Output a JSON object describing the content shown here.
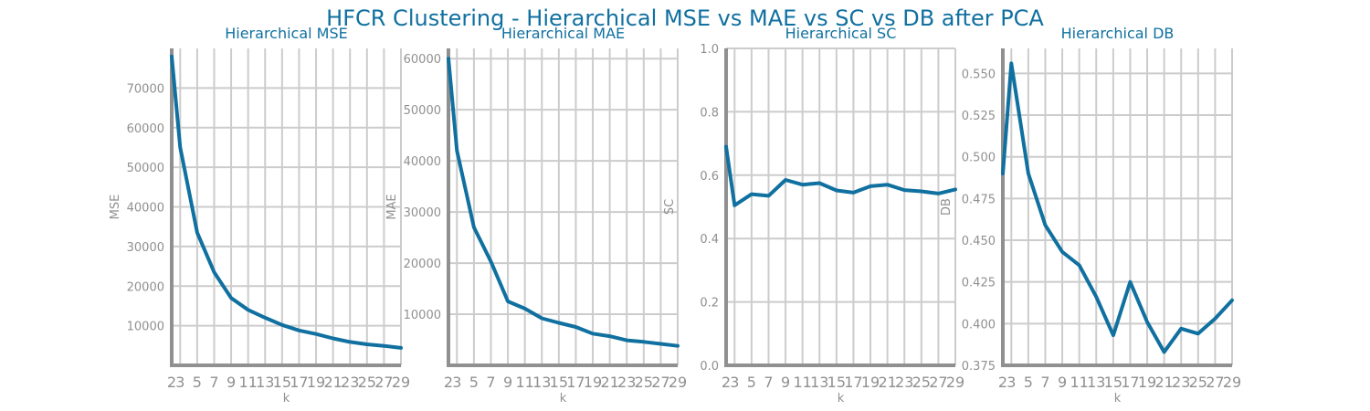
{
  "figure": {
    "title": "HFCR Clustering - Hierarchical MSE vs MAE vs SC vs DB after PCA"
  },
  "colors": {
    "series": "#1070a0",
    "title": "#1070a0",
    "grid": "#cccccc",
    "spine": "#909090",
    "text": "#909090"
  },
  "chart_data": [
    {
      "type": "line",
      "title": "Hierarchical MSE",
      "xlabel": "k",
      "ylabel": "MSE",
      "x": [
        2,
        3,
        5,
        7,
        9,
        11,
        13,
        15,
        17,
        19,
        21,
        23,
        25,
        27,
        29
      ],
      "values": [
        78000,
        55000,
        33500,
        23500,
        17000,
        14000,
        12000,
        10200,
        8800,
        7900,
        6800,
        5900,
        5300,
        4900,
        4400
      ],
      "xticks": [
        2,
        3,
        5,
        7,
        9,
        11,
        13,
        15,
        17,
        19,
        21,
        23,
        25,
        27,
        29
      ],
      "yticks": [
        10000,
        20000,
        30000,
        40000,
        50000,
        60000,
        70000
      ],
      "xlim": [
        2,
        29
      ],
      "ylim": [
        0,
        80000
      ],
      "grid": true
    },
    {
      "type": "line",
      "title": "Hierarchical MAE",
      "xlabel": "k",
      "ylabel": "MAE",
      "x": [
        2,
        3,
        5,
        7,
        9,
        11,
        13,
        15,
        17,
        19,
        21,
        23,
        25,
        27,
        29
      ],
      "values": [
        60000,
        42000,
        27000,
        20300,
        12500,
        11100,
        9200,
        8300,
        7500,
        6200,
        5700,
        4900,
        4600,
        4200,
        3800
      ],
      "xticks": [
        2,
        3,
        5,
        7,
        9,
        11,
        13,
        15,
        17,
        19,
        21,
        23,
        25,
        27,
        29
      ],
      "yticks": [
        10000,
        20000,
        30000,
        40000,
        50000,
        60000
      ],
      "xlim": [
        2,
        29
      ],
      "ylim": [
        0,
        62000
      ],
      "grid": true
    },
    {
      "type": "line",
      "title": "Hierarchical SC",
      "xlabel": "k",
      "ylabel": "SC",
      "x": [
        2,
        3,
        5,
        7,
        9,
        11,
        13,
        15,
        17,
        19,
        21,
        23,
        25,
        27,
        29
      ],
      "values": [
        0.69,
        0.505,
        0.54,
        0.535,
        0.585,
        0.57,
        0.575,
        0.552,
        0.545,
        0.565,
        0.57,
        0.553,
        0.549,
        0.542,
        0.555
      ],
      "xticks": [
        2,
        3,
        5,
        7,
        9,
        11,
        13,
        15,
        17,
        19,
        21,
        23,
        25,
        27,
        29
      ],
      "yticks": [
        0.0,
        0.2,
        0.4,
        0.6,
        0.8,
        1.0
      ],
      "ytick_labels": [
        "0.0",
        "0.2",
        "0.4",
        "0.6",
        "0.8",
        "1.0"
      ],
      "xlim": [
        2,
        29
      ],
      "ylim": [
        0,
        1
      ],
      "grid": true
    },
    {
      "type": "line",
      "title": "Hierarchical DB",
      "xlabel": "k",
      "ylabel": "DB",
      "x": [
        2,
        3,
        5,
        7,
        9,
        11,
        13,
        15,
        17,
        19,
        21,
        23,
        25,
        27,
        29
      ],
      "values": [
        0.49,
        0.556,
        0.49,
        0.459,
        0.443,
        0.435,
        0.416,
        0.393,
        0.425,
        0.401,
        0.383,
        0.397,
        0.394,
        0.403,
        0.414
      ],
      "xticks": [
        2,
        3,
        5,
        7,
        9,
        11,
        13,
        15,
        17,
        19,
        21,
        23,
        25,
        27,
        29
      ],
      "yticks": [
        0.375,
        0.4,
        0.425,
        0.45,
        0.475,
        0.5,
        0.525,
        0.55
      ],
      "ytick_labels": [
        "0.375",
        "0.400",
        "0.425",
        "0.450",
        "0.475",
        "0.500",
        "0.525",
        "0.550"
      ],
      "xlim": [
        2,
        29
      ],
      "ylim": [
        0.375,
        0.565
      ],
      "grid": true
    }
  ]
}
